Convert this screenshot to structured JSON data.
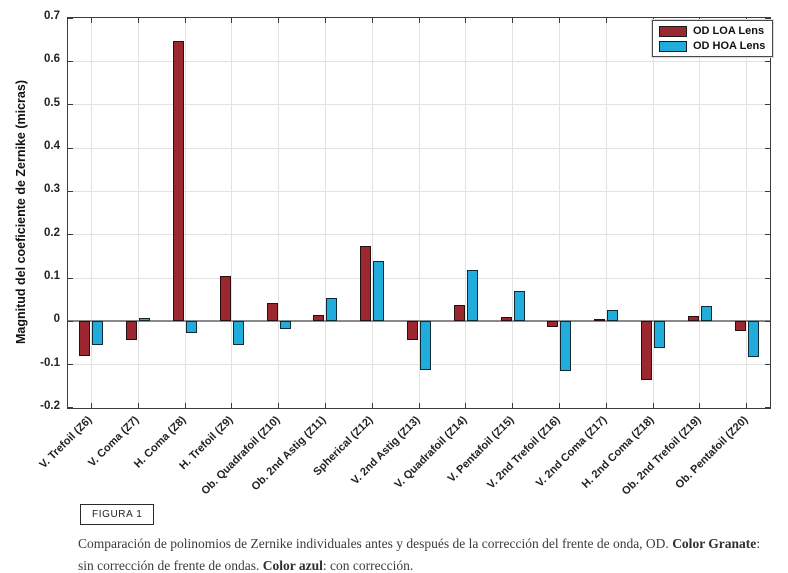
{
  "figure_label": "FIGURA 1",
  "caption": {
    "segments": [
      {
        "text": "Comparación de polinomios de Zernike individuales antes y después de la corrección del frente de onda, OD.  ",
        "bold": false
      },
      {
        "text": "Color Granate",
        "bold": true
      },
      {
        "text": ": sin corrección de frente de ondas. ",
        "bold": false
      },
      {
        "text": "Color azul",
        "bold": true
      },
      {
        "text": ": con corrección.",
        "bold": false
      }
    ]
  },
  "chart_data": {
    "type": "bar",
    "title": "",
    "xlabel": "",
    "ylabel": "Magnitud del coeficiente de Zernike (micras)",
    "ylim": [
      -0.2,
      0.7
    ],
    "ytick_step": 0.1,
    "ytick_labels": [
      "0.7",
      "0.6",
      "0.5",
      "0.4",
      "0.3",
      "0.2",
      "0.1",
      "0",
      "-0.1",
      "-0.2"
    ],
    "grid": true,
    "legend_position": "top-right-inside",
    "categories": [
      "V. Trefoil (Z6)",
      "V. Coma (Z7)",
      "H. Coma (Z8)",
      "H. Trefoil (Z9)",
      "Ob. Quadrafoil (Z10)",
      "Ob. 2nd Astig (Z11)",
      "Spherical (Z12)",
      "V. 2nd Astig (Z13)",
      "V. Quadrafoil (Z14)",
      "V. Pentafoil (Z15)",
      "V. 2nd Trefoil (Z16)",
      "V. 2nd Coma (Z17)",
      "H. 2nd Coma (Z18)",
      "Ob. 2nd Trefoil (Z19)",
      "Ob. Pentafoil (Z20)"
    ],
    "series": [
      {
        "name": "OD LOA Lens",
        "color": "#9B2830",
        "values": [
          -0.08,
          -0.042,
          0.648,
          0.104,
          0.042,
          0.014,
          0.173,
          -0.043,
          0.037,
          0.009,
          -0.012,
          0.006,
          -0.136,
          0.012,
          -0.022
        ]
      },
      {
        "name": "OD HOA Lens",
        "color": "#22ACDC",
        "values": [
          -0.055,
          0.007,
          -0.028,
          -0.055,
          -0.018,
          0.055,
          0.139,
          -0.112,
          0.118,
          0.069,
          -0.115,
          0.027,
          -0.062,
          0.036,
          -0.082
        ]
      }
    ]
  }
}
